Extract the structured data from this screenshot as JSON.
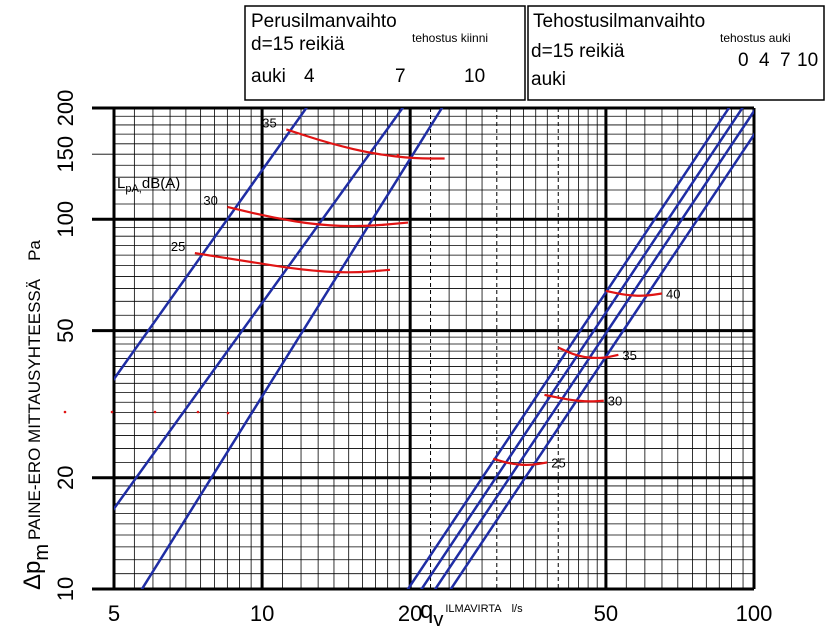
{
  "chart_data": {
    "type": "line",
    "x_scale": "log",
    "y_scale": "log",
    "xlim": [
      5,
      100
    ],
    "ylim": [
      10,
      200
    ],
    "xlabel_main": "q",
    "xlabel_sub": "v",
    "xlabel_text": "ILMAVIRTA",
    "xlabel_unit": "l/s",
    "ylabel_main": "Δp",
    "ylabel_sub": "m",
    "ylabel_text": "PAINE-ERO MITTAUSYHTEESSÄ",
    "ylabel_unit": "Pa",
    "x_ticks": [
      {
        "v": 5,
        "label": "5"
      },
      {
        "v": 10,
        "label": "10"
      },
      {
        "v": 20,
        "label": "20"
      },
      {
        "v": 50,
        "label": "50"
      },
      {
        "v": 100,
        "label": "100"
      }
    ],
    "y_ticks": [
      {
        "v": 10,
        "label": "10"
      },
      {
        "v": 20,
        "label": "20"
      },
      {
        "v": 50,
        "label": "50"
      },
      {
        "v": 100,
        "label": "100"
      },
      {
        "v": 150,
        "label": "150"
      },
      {
        "v": 200,
        "label": "200"
      }
    ],
    "sound_label": "L",
    "sound_label_sub": "pA,",
    "sound_label_rest": "dB(A)",
    "boxes": {
      "basic": {
        "title": "Perusilmanvaihto",
        "line1": "d=15 reikiä",
        "line2": "auki",
        "note": "tehostus kiinni",
        "series_labels": [
          "4",
          "7",
          "10"
        ]
      },
      "boost": {
        "title": "Tehostusilmanvaihto",
        "line1": "d=15 reikiä",
        "line2": "auki",
        "note": "tehostus auki",
        "series_labels": [
          "0",
          "4",
          "7",
          "10"
        ]
      }
    },
    "series": [
      {
        "name": "4",
        "group": "basic",
        "points": [
          [
            5,
            37
          ],
          [
            12.3,
            200
          ]
        ]
      },
      {
        "name": "7",
        "group": "basic",
        "points": [
          [
            5,
            16.5
          ],
          [
            19.3,
            200
          ]
        ]
      },
      {
        "name": "10",
        "group": "basic",
        "points": [
          [
            5.7,
            10
          ],
          [
            23.2,
            200
          ]
        ]
      },
      {
        "name": "0",
        "group": "boost",
        "points": [
          [
            19.8,
            10
          ],
          [
            88.9,
            200
          ]
        ]
      },
      {
        "name": "4",
        "group": "boost",
        "points": [
          [
            21.1,
            10
          ],
          [
            94.7,
            200
          ]
        ]
      },
      {
        "name": "7",
        "group": "boost",
        "points": [
          [
            22.5,
            10
          ],
          [
            101,
            200
          ]
        ]
      },
      {
        "name": "10",
        "group": "boost",
        "points": [
          [
            24.2,
            10
          ],
          [
            108.7,
            200
          ]
        ]
      }
    ],
    "sound_curves": [
      {
        "label": "35",
        "points": [
          [
            11.2,
            175
          ],
          [
            13.8,
            160
          ],
          [
            17,
            150
          ],
          [
            20.5,
            146
          ],
          [
            23.5,
            146
          ]
        ]
      },
      {
        "label": "30",
        "points": [
          [
            8.5,
            108
          ],
          [
            10.5,
            101
          ],
          [
            13,
            96.5
          ],
          [
            16,
            95.5
          ],
          [
            19.8,
            98
          ]
        ]
      },
      {
        "label": "25",
        "points": [
          [
            7.3,
            81
          ],
          [
            9.3,
            77
          ],
          [
            12,
            73
          ],
          [
            15,
            71.5
          ],
          [
            18.2,
            73
          ]
        ]
      },
      {
        "label": "40",
        "points": [
          [
            50,
            64
          ],
          [
            55,
            62.3
          ],
          [
            60,
            62
          ],
          [
            65,
            63
          ]
        ]
      },
      {
        "label": "35",
        "points": [
          [
            40,
            45
          ],
          [
            44,
            42.5
          ],
          [
            49,
            42
          ],
          [
            53,
            43
          ]
        ]
      },
      {
        "label": "30",
        "points": [
          [
            37.5,
            33.5
          ],
          [
            42,
            32.5
          ],
          [
            46,
            32.1
          ],
          [
            49.5,
            32.3
          ]
        ]
      },
      {
        "label": "25",
        "points": [
          [
            29.5,
            22.5
          ],
          [
            32,
            21.8
          ],
          [
            35,
            21.6
          ],
          [
            38,
            22
          ]
        ]
      }
    ],
    "dashed_x": [
      22,
      30,
      40
    ],
    "colors": {
      "series": "#1f2da4",
      "sound": "#e01414",
      "grid": "#000000"
    }
  }
}
